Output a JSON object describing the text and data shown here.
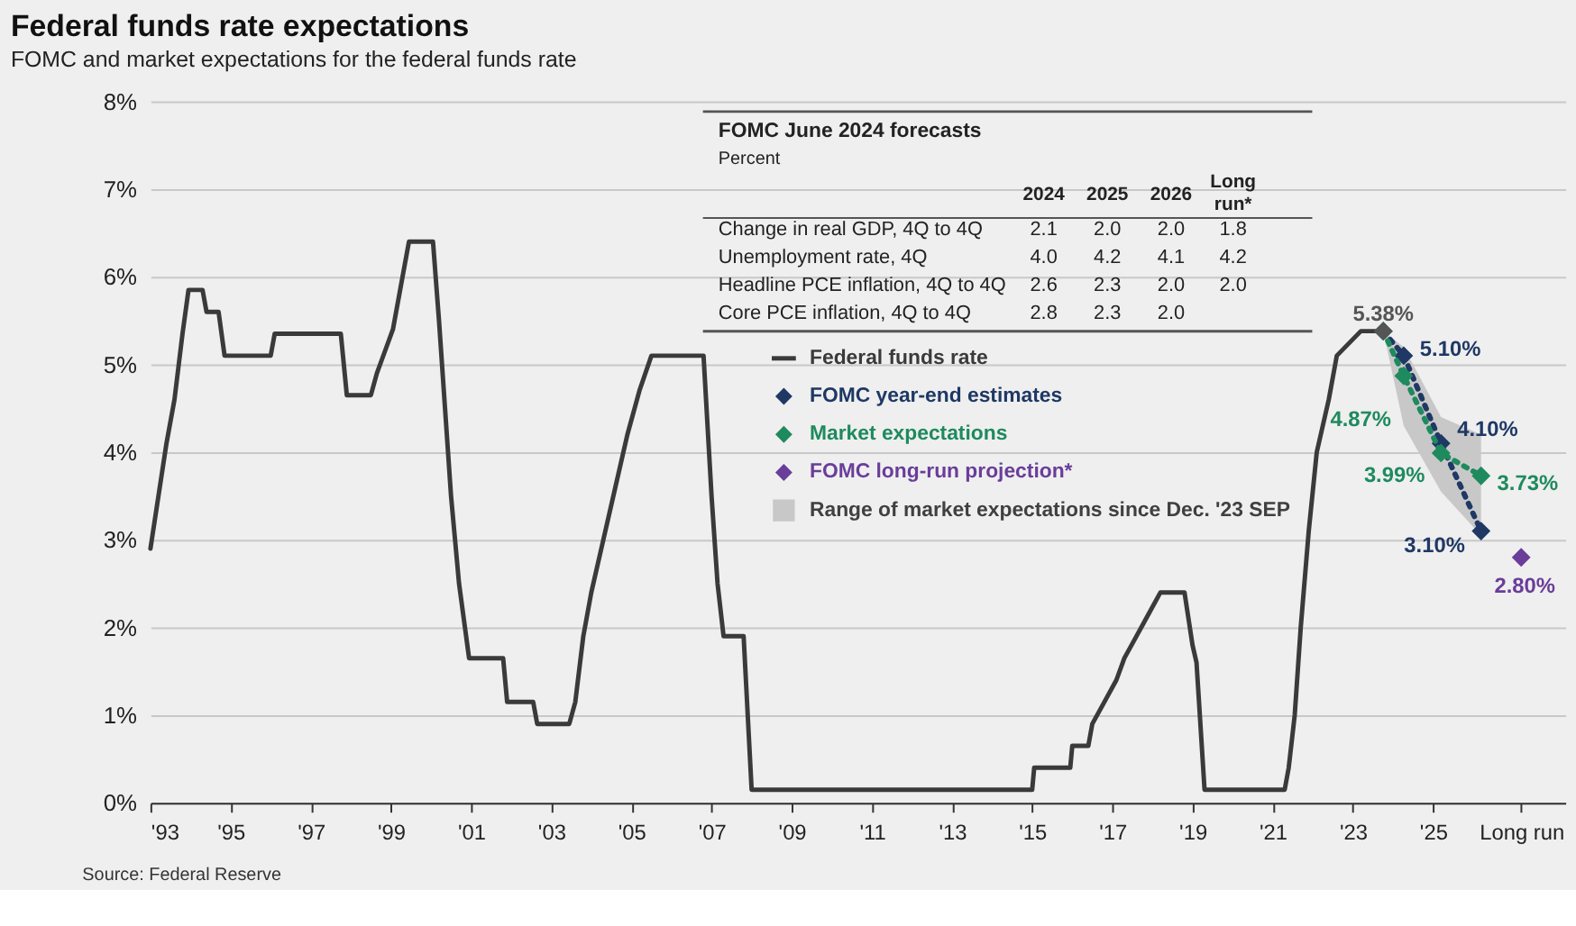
{
  "chart_data": {
    "type": "line",
    "title": "Federal funds rate expectations",
    "subtitle": "FOMC and market expectations for the federal funds rate",
    "xlim": [
      1993,
      2028.3
    ],
    "ylim": [
      0,
      8
    ],
    "xticks": [
      {
        "value": 1993,
        "label": "'93"
      },
      {
        "value": 1995,
        "label": "'95"
      },
      {
        "value": 1997,
        "label": "'97"
      },
      {
        "value": 1999,
        "label": "'99"
      },
      {
        "value": 2001,
        "label": "'01"
      },
      {
        "value": 2003,
        "label": "'03"
      },
      {
        "value": 2005,
        "label": "'05"
      },
      {
        "value": 2007,
        "label": "'07"
      },
      {
        "value": 2009,
        "label": "'09"
      },
      {
        "value": 2011,
        "label": "'11"
      },
      {
        "value": 2013,
        "label": "'13"
      },
      {
        "value": 2015,
        "label": "'15"
      },
      {
        "value": 2017,
        "label": "'17"
      },
      {
        "value": 2019,
        "label": "'19"
      },
      {
        "value": 2021,
        "label": "'21"
      },
      {
        "value": 2023,
        "label": "'23"
      },
      {
        "value": 2025,
        "label": "'25"
      },
      {
        "value": 2027.2,
        "label": "Long run"
      }
    ],
    "yticks": [
      {
        "value": 0,
        "label": "0%"
      },
      {
        "value": 1,
        "label": "1%"
      },
      {
        "value": 2,
        "label": "2%"
      },
      {
        "value": 3,
        "label": "3%"
      },
      {
        "value": 4,
        "label": "4%"
      },
      {
        "value": 5,
        "label": "5%"
      },
      {
        "value": 6,
        "label": "6%"
      },
      {
        "value": 7,
        "label": "7%"
      },
      {
        "value": 8,
        "label": "8%"
      }
    ],
    "grid": "y",
    "legend": "top",
    "series": [
      {
        "name": "Federal funds rate",
        "type": "line",
        "color": "#3a3a3a",
        "line_style": "solid",
        "x": [
          1993.0,
          1993.2,
          1993.4,
          1993.6,
          1993.8,
          1993.95,
          1994.3,
          1994.4,
          1994.7,
          1994.85,
          1996.0,
          1996.1,
          1997.75,
          1997.9,
          1998.5,
          1998.65,
          1998.85,
          1999.05,
          1999.25,
          1999.45,
          2000.05,
          2000.2,
          2000.35,
          2000.5,
          2000.7,
          2000.95,
          2001.8,
          2001.9,
          2002.55,
          2002.65,
          2003.45,
          2003.6,
          2003.8,
          2004.0,
          2004.3,
          2004.6,
          2004.9,
          2005.2,
          2005.5,
          2006.8,
          2006.9,
          2007.0,
          2007.15,
          2007.3,
          2007.8,
          2008.0,
          2015.0,
          2015.05,
          2015.95,
          2016.0,
          2016.4,
          2016.5,
          2016.8,
          2017.1,
          2017.3,
          2017.6,
          2017.9,
          2018.2,
          2018.8,
          2018.9,
          2019.0,
          2019.1,
          2019.3,
          2021.3,
          2021.4,
          2021.55,
          2021.7,
          2021.9,
          2022.1,
          2022.4,
          2022.6,
          2023.2,
          2023.76
        ],
        "values": [
          2.9,
          3.5,
          4.1,
          4.6,
          5.35,
          5.85,
          5.85,
          5.6,
          5.6,
          5.1,
          5.1,
          5.35,
          5.35,
          4.65,
          4.65,
          4.9,
          5.15,
          5.4,
          5.9,
          6.4,
          6.4,
          5.5,
          4.5,
          3.5,
          2.5,
          1.65,
          1.65,
          1.15,
          1.15,
          0.9,
          0.9,
          1.15,
          1.9,
          2.4,
          3.0,
          3.6,
          4.2,
          4.7,
          5.1,
          5.1,
          4.3,
          3.5,
          2.5,
          1.9,
          1.9,
          0.15,
          0.15,
          0.4,
          0.4,
          0.65,
          0.65,
          0.9,
          1.15,
          1.4,
          1.65,
          1.9,
          2.15,
          2.4,
          2.4,
          2.1,
          1.8,
          1.6,
          0.15,
          0.15,
          0.4,
          1.0,
          2.0,
          3.1,
          4.0,
          4.6,
          5.1,
          5.38,
          5.38
        ]
      },
      {
        "name": "FOMC year-end estimates",
        "type": "line",
        "color": "#1f3864",
        "line_style": "dotted",
        "marker": "diamond",
        "x": [
          2023.76,
          2024.27,
          2025.2,
          2026.2
        ],
        "values": [
          5.38,
          5.1,
          4.1,
          3.1
        ],
        "value_labels": [
          null,
          "5.10%",
          "4.10%",
          "3.10%"
        ]
      },
      {
        "name": "Market expectations",
        "type": "line",
        "color": "#1e8a5e",
        "line_style": "dotted",
        "marker": "diamond",
        "x": [
          2023.76,
          2024.27,
          2025.2,
          2026.2
        ],
        "values": [
          5.38,
          4.87,
          3.99,
          3.73
        ],
        "value_labels": [
          null,
          "4.87%",
          "3.99%",
          "3.73%"
        ]
      },
      {
        "name": "FOMC long-run projection*",
        "type": "scatter",
        "color": "#6a3d9a",
        "marker": "diamond",
        "x": [
          2027.2
        ],
        "values": [
          2.8
        ],
        "value_labels": [
          "2.80%"
        ]
      },
      {
        "name": "Range of market expectations since Dec. '23 SEP",
        "type": "area",
        "color": "#c8c8c8",
        "x": [
          2023.76,
          2024.27,
          2025.2,
          2026.2
        ],
        "values": [
          null,
          null,
          null,
          null
        ],
        "lower": [
          5.38,
          4.3,
          3.55,
          3.05
        ],
        "upper": [
          5.38,
          5.2,
          4.4,
          4.2
        ]
      },
      {
        "type": "scatter",
        "color": "#555555",
        "marker": "diamond",
        "x": [
          2023.76
        ],
        "values": [
          5.38
        ],
        "value_labels": [
          "5.38%"
        ]
      }
    ],
    "annotations": [
      "Source: Federal Reserve",
      "FOMC June 2024 forecasts",
      "Percent",
      "2024",
      "2025",
      "2026",
      "Long run*",
      "Change in real GDP, 4Q to 4Q",
      "2.1",
      "2.0",
      "2.0",
      "1.8",
      "Unemployment rate, 4Q",
      "4.0",
      "4.2",
      "4.1",
      "4.2",
      "Headline PCE inflation, 4Q to 4Q",
      "2.6",
      "2.3",
      "2.0",
      "2.0",
      "Core PCE inflation, 4Q to 4Q",
      "2.8",
      "2.3",
      "2.0"
    ]
  }
}
